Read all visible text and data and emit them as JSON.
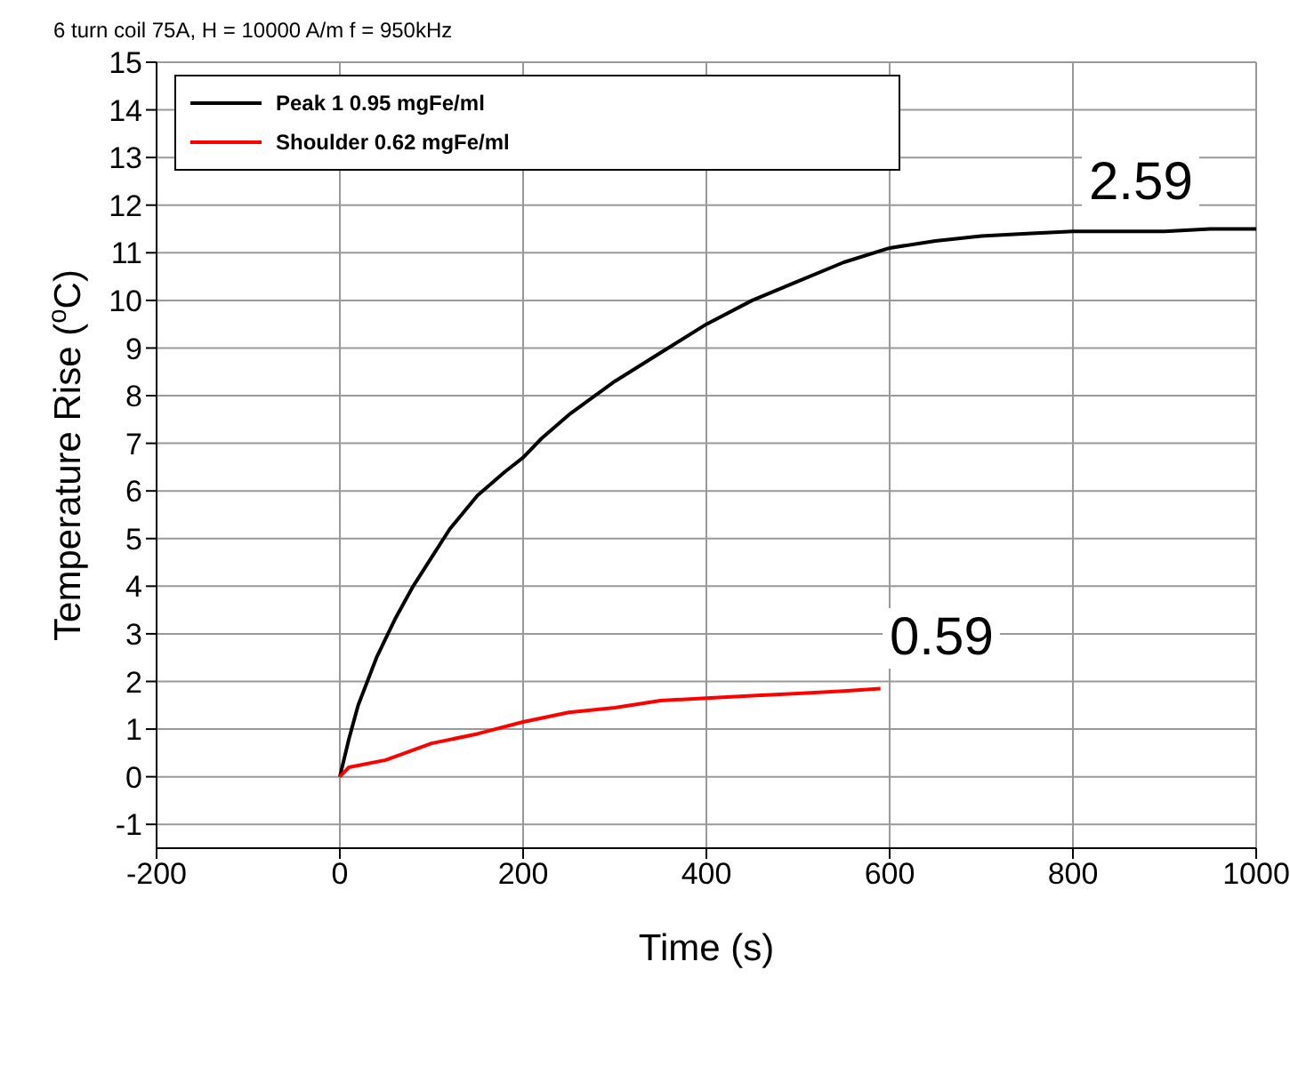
{
  "chart_data": {
    "type": "line",
    "title": "6 turn coil 75A, H = 10000 A/m f = 950kHz",
    "xlabel": "Time (s)",
    "ylabel": "Temperature Rise ($^{o}$C)",
    "xlim": [
      -200,
      1000
    ],
    "xticks": [
      -200,
      0,
      200,
      400,
      600,
      800,
      1000
    ],
    "ylim": [
      -1.5,
      15
    ],
    "yticks": [
      -1,
      0,
      1,
      2,
      3,
      4,
      5,
      6,
      7,
      8,
      9,
      10,
      11,
      12,
      13,
      14,
      15
    ],
    "grid": true,
    "legend": "top left",
    "marker": "none",
    "line_style": "solid",
    "series": [
      {
        "name": "Peak 1 0.95 mgFe/ml",
        "color": "#000000",
        "x": [
          0,
          10,
          20,
          40,
          60,
          80,
          100,
          120,
          150,
          180,
          200,
          220,
          250,
          300,
          350,
          400,
          450,
          500,
          550,
          600,
          650,
          700,
          750,
          800,
          850,
          900,
          950,
          1000
        ],
        "values": [
          0,
          0.8,
          1.5,
          2.5,
          3.3,
          4.0,
          4.6,
          5.2,
          5.9,
          6.4,
          6.7,
          7.1,
          7.6,
          8.3,
          8.9,
          9.5,
          10.0,
          10.4,
          10.8,
          11.1,
          11.25,
          11.35,
          11.4,
          11.45,
          11.45,
          11.45,
          11.5,
          11.5
        ]
      },
      {
        "name": "Shoulder  0.62 mgFe/ml",
        "color": "#ff0000",
        "x": [
          0,
          10,
          50,
          100,
          150,
          200,
          250,
          300,
          350,
          400,
          450,
          500,
          550,
          590
        ],
        "values": [
          0,
          0.2,
          0.35,
          0.7,
          0.9,
          1.15,
          1.35,
          1.45,
          1.6,
          1.65,
          1.7,
          1.75,
          1.8,
          1.85
        ]
      }
    ],
    "annotations": [
      "2.59",
      "0.59"
    ]
  }
}
